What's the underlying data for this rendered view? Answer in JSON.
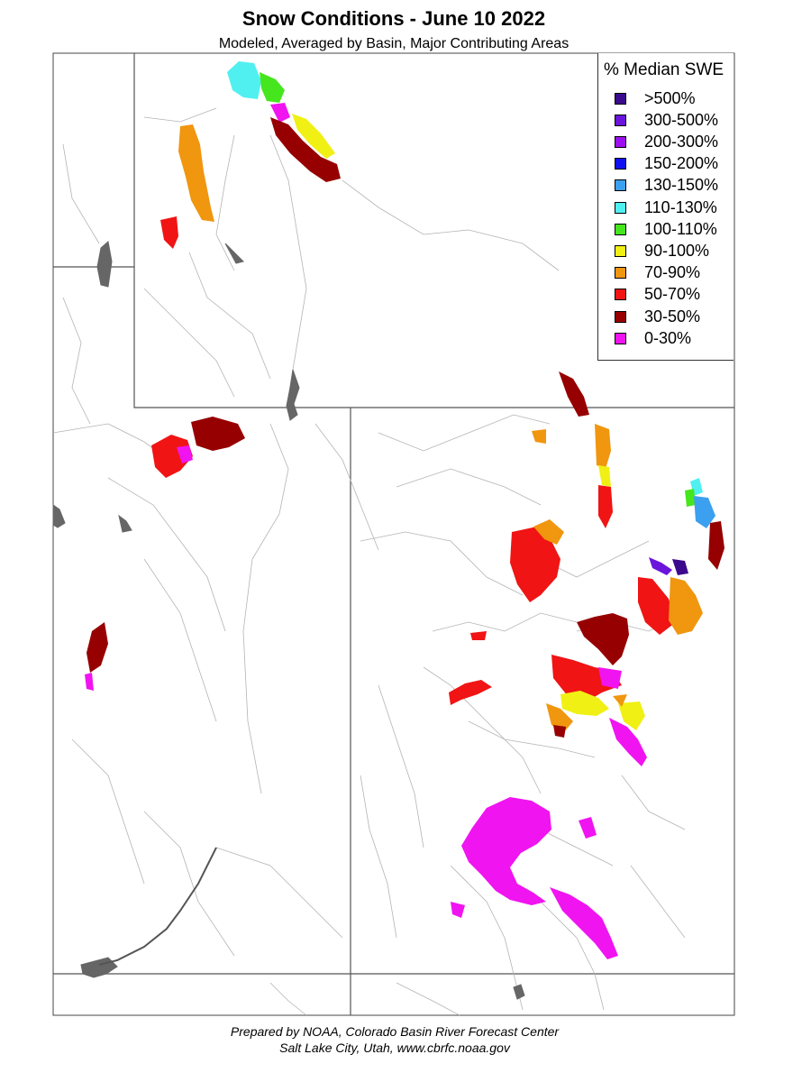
{
  "title": "Snow Conditions - June 10 2022",
  "subtitle": "Modeled, Averaged by Basin, Major Contributing Areas",
  "legend": {
    "title": "% Median SWE",
    "items": [
      {
        "label": ">500%",
        "color": "#3c0a8c"
      },
      {
        "label": "300-500%",
        "color": "#6a14dc"
      },
      {
        "label": "200-300%",
        "color": "#9a10f0"
      },
      {
        "label": "150-200%",
        "color": "#1010f0"
      },
      {
        "label": "130-150%",
        "color": "#3ca0f0"
      },
      {
        "label": "110-130%",
        "color": "#50f0f0"
      },
      {
        "label": "100-110%",
        "color": "#46e61e"
      },
      {
        "label": "90-100%",
        "color": "#f0f014"
      },
      {
        "label": "70-90%",
        "color": "#f0960f"
      },
      {
        "label": "50-70%",
        "color": "#f01414"
      },
      {
        "label": "30-50%",
        "color": "#960000"
      },
      {
        "label": "0-30%",
        "color": "#f014f0"
      }
    ]
  },
  "footer": {
    "line1": "Prepared by NOAA, Colorado Basin River Forecast Center",
    "line2": "Salt Lake City, Utah, www.cbrfc.noaa.gov"
  }
}
